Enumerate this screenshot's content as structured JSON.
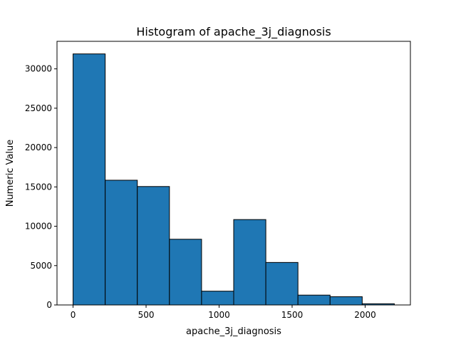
{
  "chart_data": {
    "type": "bar",
    "title": "Histogram of apache_3j_diagnosis",
    "xlabel": "apache_3j_diagnosis",
    "ylabel": "Numeric Value",
    "xlim": [
      -110,
      2310
    ],
    "ylim": [
      0,
      33500
    ],
    "bin_edges": [
      0,
      220,
      440,
      660,
      880,
      1100,
      1320,
      1540,
      1760,
      1980,
      2200
    ],
    "values": [
      31900,
      15850,
      15050,
      8350,
      1750,
      10850,
      5400,
      1250,
      1050,
      150
    ],
    "xticks": [
      0,
      500,
      1000,
      1500,
      2000
    ],
    "xtick_labels": [
      "0",
      "500",
      "1000",
      "1500",
      "2000"
    ],
    "yticks": [
      0,
      5000,
      10000,
      15000,
      20000,
      25000,
      30000
    ],
    "ytick_labels": [
      "0",
      "5000",
      "10000",
      "15000",
      "20000",
      "25000",
      "30000"
    ],
    "bar_color": "#1f77b4",
    "edge_color": "#000000",
    "grid": false,
    "legend": "none"
  }
}
